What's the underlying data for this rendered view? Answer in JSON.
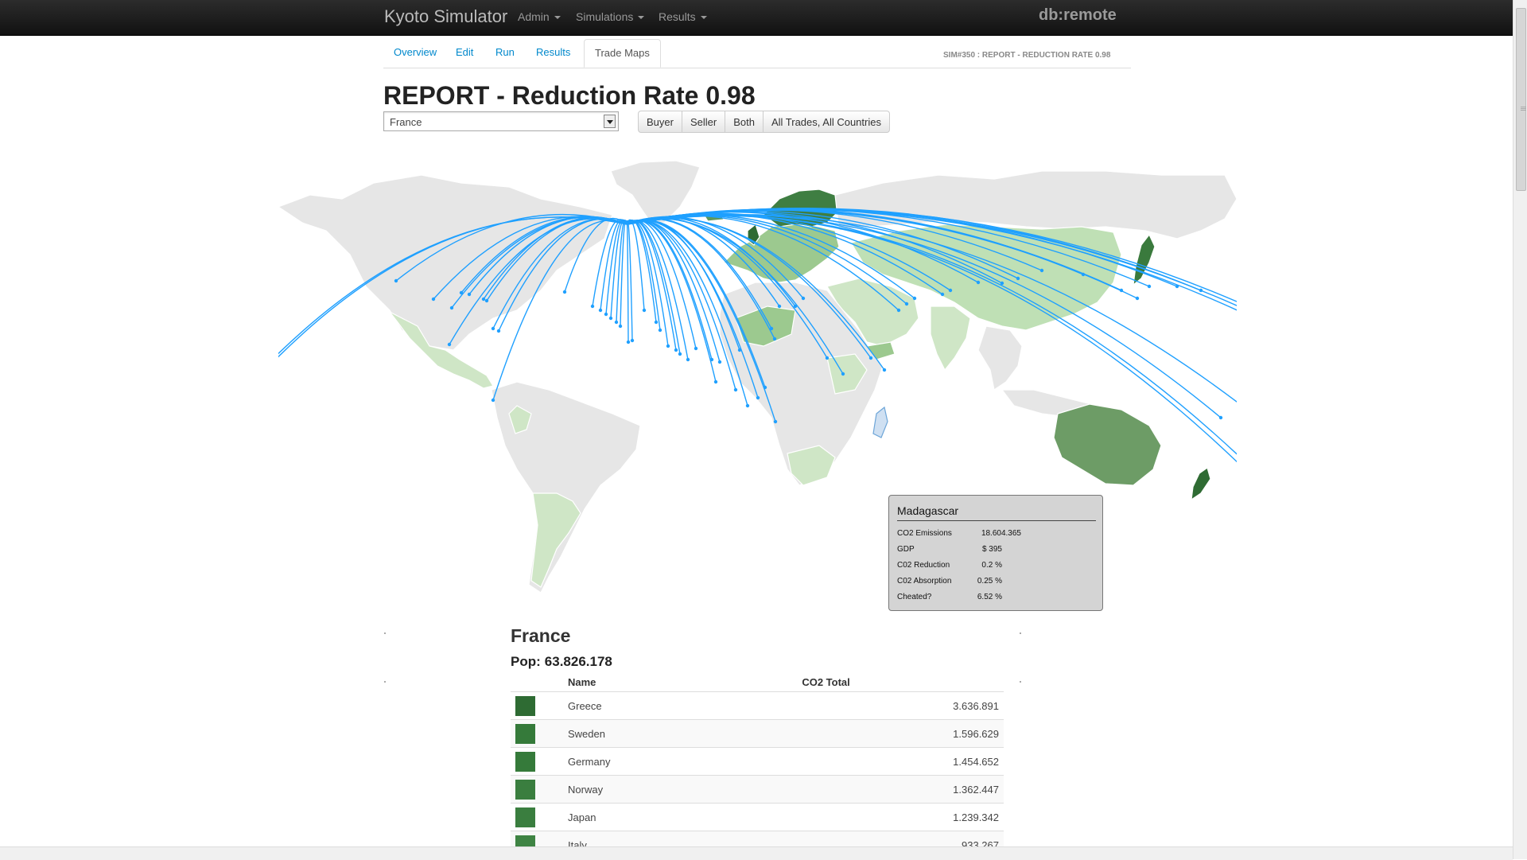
{
  "navbar": {
    "brand": "Kyoto Simulator",
    "menus": [
      "Admin",
      "Simulations",
      "Results"
    ],
    "db_label": "db:remote"
  },
  "tabs": [
    "Overview",
    "Edit",
    "Run",
    "Results",
    "Trade Maps"
  ],
  "active_tab": "Trade Maps",
  "sim_label": "SIM#350 : REPORT - REDUCTION RATE 0.98",
  "page_title": "REPORT - Reduction Rate 0.98",
  "country_select": {
    "value": "France"
  },
  "filter_buttons": [
    "Buyer",
    "Seller",
    "Both",
    "All Trades, All Countries"
  ],
  "map": {
    "trade_line_color": "#1fa0ff",
    "land_color": "#e6e6e6",
    "border_color": "#ffffff"
  },
  "tooltip": {
    "country": "Madagascar",
    "rows": [
      {
        "label": "CO2 Emissions",
        "value": "18.604.365"
      },
      {
        "label": "GDP",
        "value": "$ 395"
      },
      {
        "label": "C02 Reduction",
        "value": "0.2 %"
      },
      {
        "label": "C02 Absorption",
        "value": "0.25 %"
      },
      {
        "label": "Cheated?",
        "value": "6.52 %"
      }
    ]
  },
  "country_panel": {
    "name": "France",
    "pop_label": "Pop:",
    "pop_value": "63.826.178",
    "columns": [
      "Name",
      "CO2 Total"
    ],
    "rows": [
      {
        "name": "Greece",
        "co2": "3.636.891",
        "color": "#2e6b33"
      },
      {
        "name": "Sweden",
        "co2": "1.596.629",
        "color": "#357a3a"
      },
      {
        "name": "Germany",
        "co2": "1.454.652",
        "color": "#357a3a"
      },
      {
        "name": "Norway",
        "co2": "1.362.447",
        "color": "#3a7e3f"
      },
      {
        "name": "Japan",
        "co2": "1.239.342",
        "color": "#3a7e3f"
      },
      {
        "name": "Italy",
        "co2": "933.267",
        "color": "#3f8444"
      }
    ]
  }
}
